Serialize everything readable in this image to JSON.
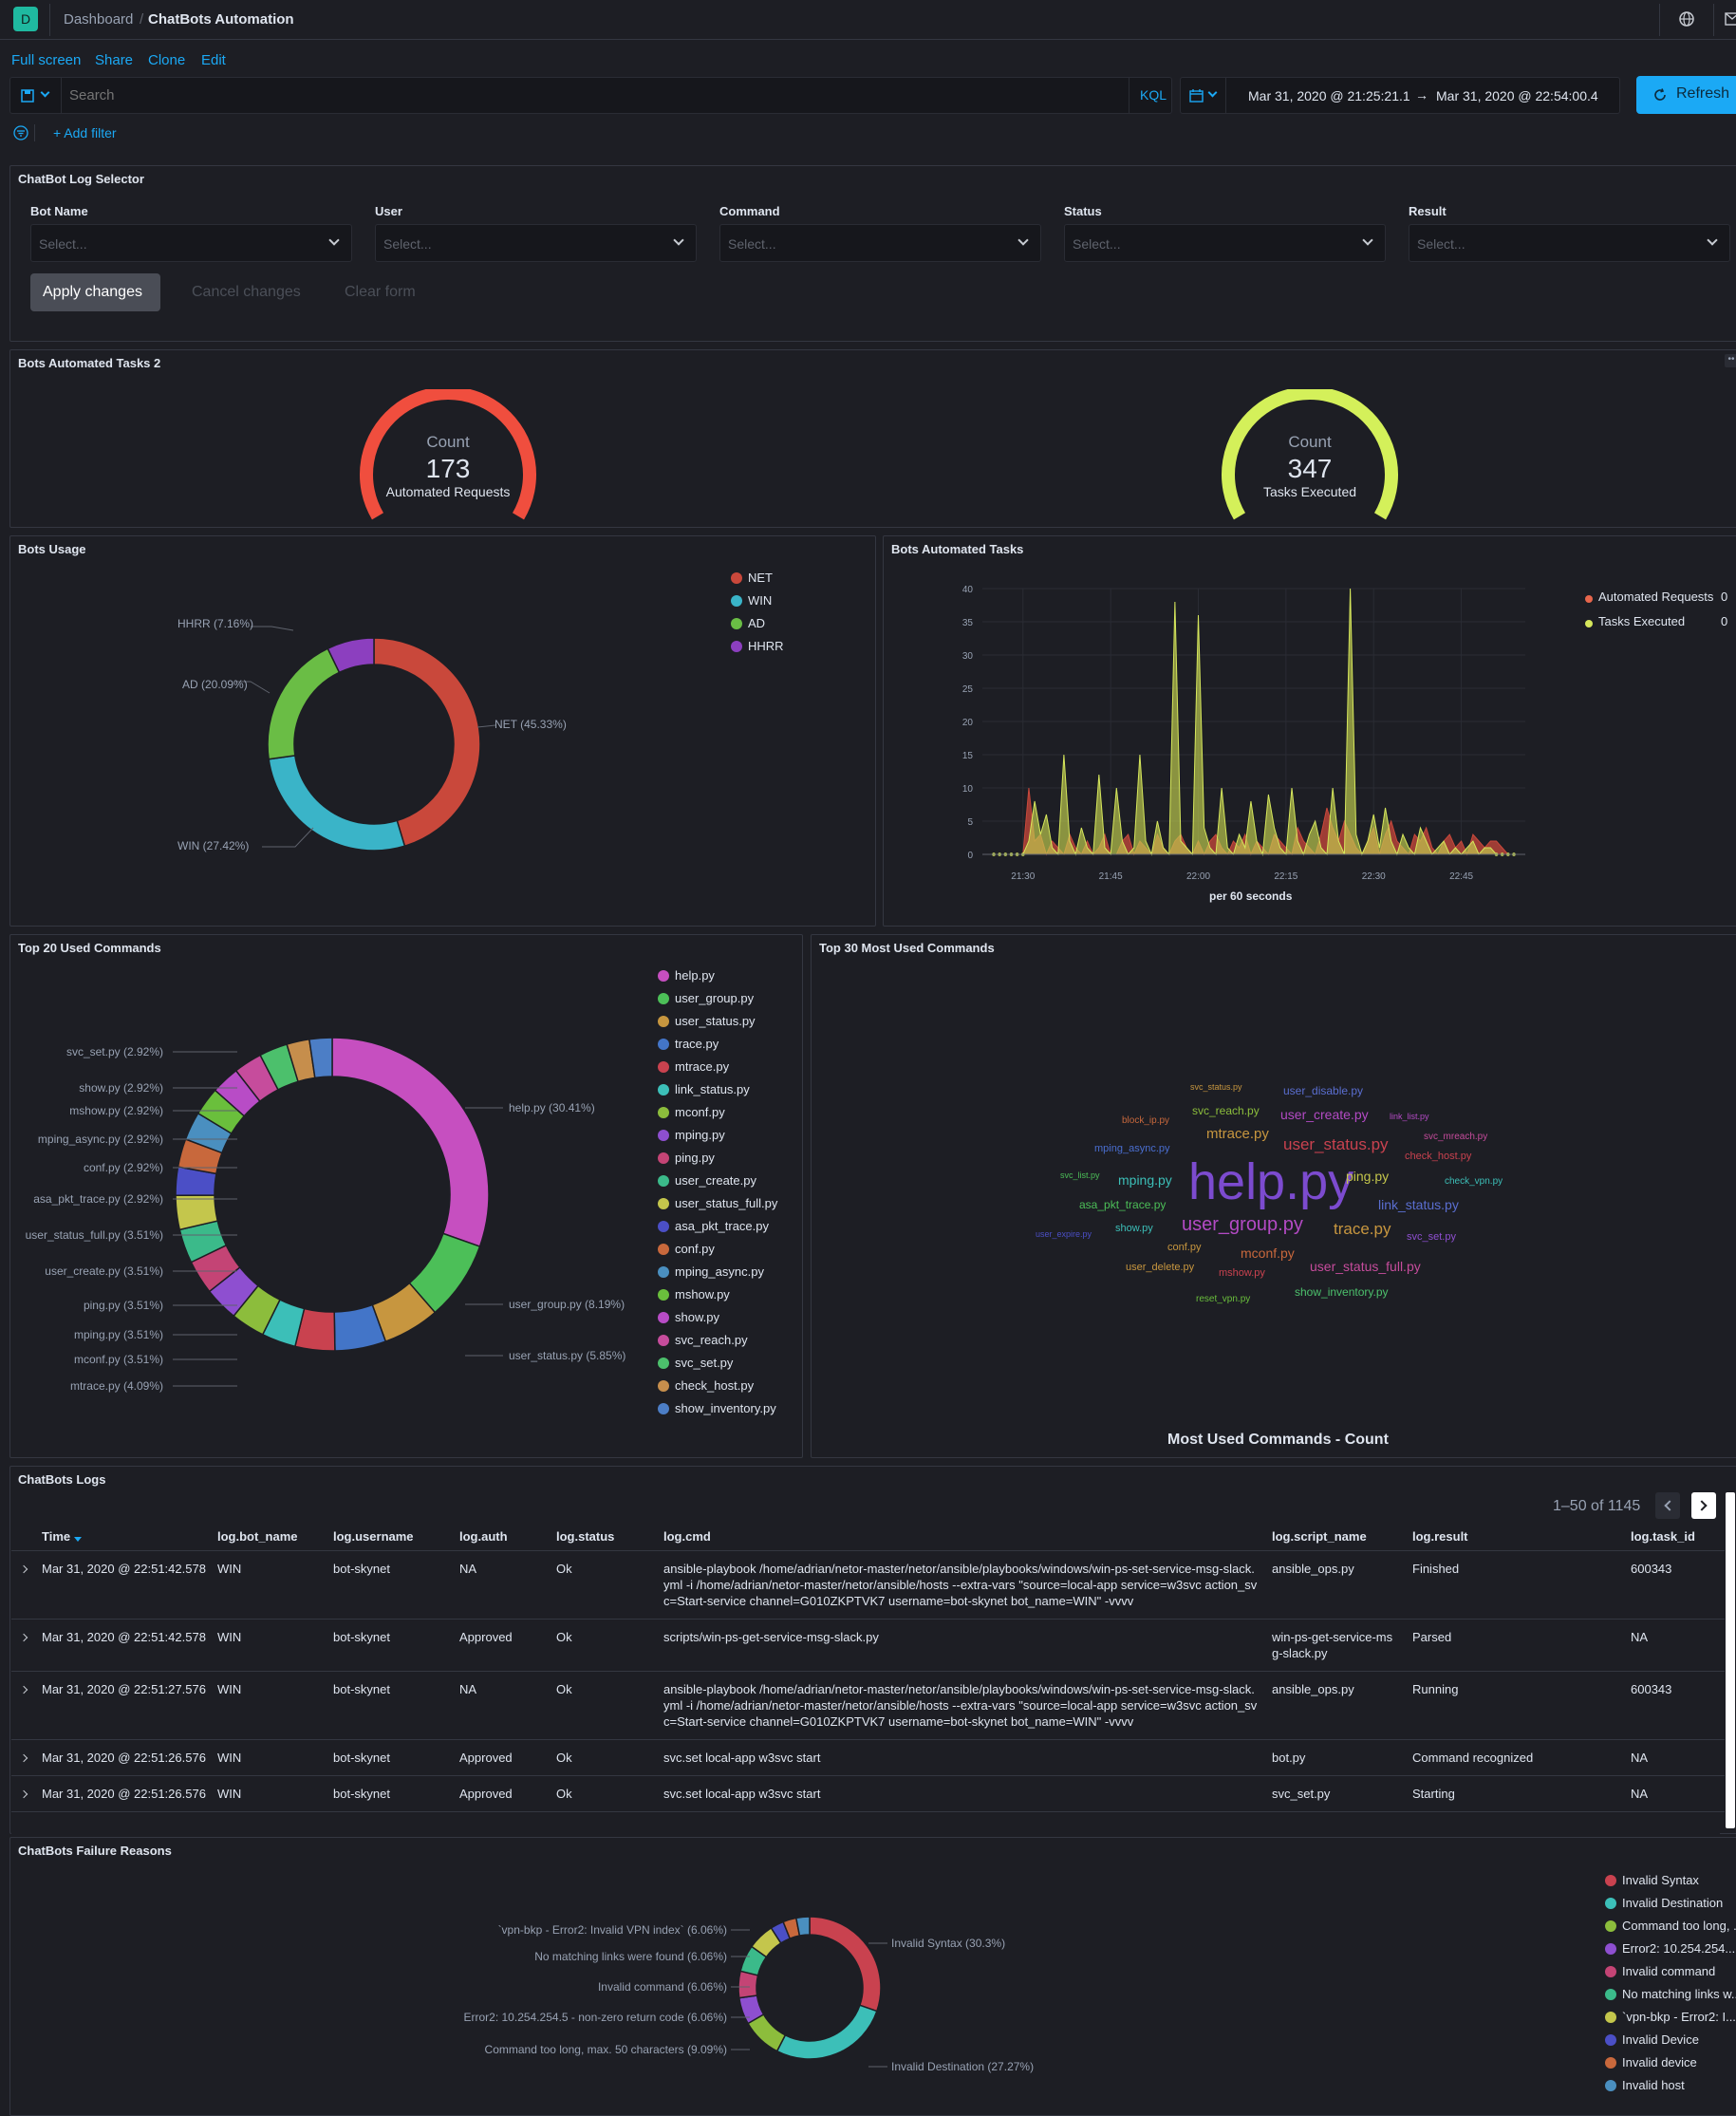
{
  "header": {
    "avatar_letter": "D",
    "crumb_dashboard": "Dashboard",
    "crumb_sep": "/",
    "crumb_current": "ChatBots Automation"
  },
  "actions": {
    "fullscreen": "Full screen",
    "share": "Share",
    "clone": "Clone",
    "edit": "Edit"
  },
  "search": {
    "placeholder": "Search",
    "kql": "KQL",
    "date_from": "Mar 31, 2020 @ 21:25:21.1",
    "arrow": "→",
    "date_to": "Mar 31, 2020 @ 22:54:00.4",
    "refresh": "Refresh",
    "add_filter": "+ Add filter"
  },
  "selector": {
    "title": "ChatBot Log Selector",
    "fields": [
      {
        "label": "Bot Name",
        "placeholder": "Select..."
      },
      {
        "label": "User",
        "placeholder": "Select..."
      },
      {
        "label": "Command",
        "placeholder": "Select..."
      },
      {
        "label": "Status",
        "placeholder": "Select..."
      },
      {
        "label": "Result",
        "placeholder": "Select..."
      }
    ],
    "apply": "Apply changes",
    "cancel": "Cancel changes",
    "clear": "Clear form"
  },
  "gauges": {
    "title": "Bots Automated Tasks 2",
    "items": [
      {
        "label": "Count",
        "value": "173",
        "sub": "Automated Requests",
        "color": "#f04e3e"
      },
      {
        "label": "Count",
        "value": "347",
        "sub": "Tasks Executed",
        "color": "#d4f05a"
      }
    ]
  },
  "bots_usage": {
    "title": "Bots Usage",
    "legend": [
      {
        "name": "NET",
        "color": "#c9483b"
      },
      {
        "name": "WIN",
        "color": "#3ab4c8"
      },
      {
        "name": "AD",
        "color": "#6abd45"
      },
      {
        "name": "HHRR",
        "color": "#8c3fbf"
      }
    ],
    "labels": [
      "NET (45.33%)",
      "WIN (27.42%)",
      "AD (20.09%)",
      "HHRR (7.16%)"
    ],
    "values": [
      45.33,
      27.42,
      20.09,
      7.16
    ]
  },
  "automated_tasks": {
    "title": "Bots Automated Tasks",
    "legend": [
      {
        "name": "Automated Requests",
        "value": "0",
        "color": "#e7664c"
      },
      {
        "name": "Tasks Executed",
        "value": "0",
        "color": "#d6e75c"
      }
    ],
    "xlabel": "per 60 seconds"
  },
  "chart_data": [
    {
      "type": "pie",
      "title": "Bots Usage",
      "categories": [
        "NET",
        "WIN",
        "AD",
        "HHRR"
      ],
      "values": [
        45.33,
        27.42,
        20.09,
        7.16
      ]
    },
    {
      "type": "area",
      "title": "Bots Automated Tasks",
      "xlabel": "per 60 seconds",
      "x_ticks": [
        "21:30",
        "21:45",
        "22:00",
        "22:15",
        "22:30",
        "22:45"
      ],
      "y_ticks": [
        "0",
        "5",
        "10",
        "15",
        "20",
        "25",
        "30",
        "35",
        "40"
      ],
      "ylim": [
        0,
        40
      ],
      "x_minutes": [
        0,
        1,
        2,
        3,
        4,
        5,
        6,
        7,
        8,
        9,
        10,
        11,
        12,
        13,
        14,
        15,
        16,
        17,
        18,
        19,
        20,
        21,
        22,
        23,
        24,
        25,
        26,
        27,
        28,
        29,
        30,
        31,
        32,
        33,
        34,
        35,
        36,
        37,
        38,
        39,
        40,
        41,
        42,
        43,
        44,
        45,
        46,
        47,
        48,
        49,
        50,
        51,
        52,
        53,
        54,
        55,
        56,
        57,
        58,
        59,
        60,
        61,
        62,
        63,
        64,
        65,
        66,
        67,
        68,
        69,
        70,
        71,
        72,
        73,
        74,
        75,
        76,
        77,
        78,
        79,
        80,
        81,
        82,
        83,
        84,
        85,
        86,
        87,
        88,
        89
      ],
      "series": [
        {
          "name": "Automated Requests",
          "values": [
            0,
            0,
            0,
            0,
            0,
            0,
            10,
            2,
            3,
            0,
            2,
            1,
            0,
            3,
            1,
            0,
            2,
            0,
            1,
            3,
            0,
            0,
            2,
            3,
            0,
            2,
            1,
            0,
            3,
            1,
            0,
            2,
            3,
            1,
            0,
            2,
            0,
            2,
            3,
            1,
            0,
            2,
            1,
            3,
            0,
            2,
            1,
            0,
            3,
            2,
            1,
            0,
            4,
            2,
            1,
            0,
            3,
            7,
            4,
            2,
            5,
            3,
            1,
            0,
            2,
            4,
            0,
            3,
            5,
            2,
            1,
            0,
            3,
            2,
            4,
            1,
            0,
            2,
            3,
            1,
            2,
            0,
            3,
            2,
            1,
            2,
            2,
            1,
            0,
            0
          ]
        },
        {
          "name": "Tasks Executed",
          "values": [
            0,
            0,
            0,
            0,
            0,
            0,
            2,
            8,
            3,
            6,
            1,
            0,
            15,
            2,
            0,
            4,
            1,
            0,
            12,
            1,
            0,
            10,
            2,
            0,
            1,
            15,
            2,
            0,
            5,
            1,
            0,
            38,
            2,
            1,
            0,
            36,
            4,
            1,
            0,
            10,
            1,
            0,
            3,
            1,
            8,
            2,
            0,
            9,
            4,
            1,
            0,
            10,
            2,
            0,
            3,
            5,
            1,
            0,
            10,
            2,
            0,
            40,
            3,
            0,
            2,
            6,
            1,
            7,
            2,
            0,
            3,
            1,
            0,
            4,
            2,
            0,
            1,
            2,
            0,
            1,
            0,
            1,
            2,
            0,
            1,
            1,
            0,
            0,
            0,
            0
          ]
        }
      ]
    },
    {
      "type": "pie",
      "title": "Top 20 Used Commands",
      "categories": [
        "help.py",
        "user_group.py",
        "user_status.py",
        "trace.py",
        "mtrace.py",
        "link_status.py",
        "mconf.py",
        "mping.py",
        "ping.py",
        "user_create.py",
        "user_status_full.py",
        "asa_pkt_trace.py",
        "conf.py",
        "mping_async.py",
        "mshow.py",
        "show.py",
        "svc_reach.py",
        "svc_set.py",
        "check_host.py",
        "show_inventory.py"
      ],
      "values": [
        30.41,
        8.19,
        5.85,
        5.26,
        4.09,
        3.51,
        3.51,
        3.51,
        3.51,
        3.51,
        3.51,
        2.92,
        2.92,
        2.92,
        2.92,
        2.92,
        2.92,
        2.92,
        2.34,
        2.34
      ]
    },
    {
      "type": "pie",
      "title": "ChatBots Failure Reasons",
      "categories": [
        "Invalid Syntax",
        "Invalid Destination",
        "Command too long, max. 50 characters",
        "Error2: 10.254.254.5 - non-zero return code",
        "Invalid command",
        "No matching links were found",
        "`vpn-bkp - Error2: Invalid VPN index`",
        "Invalid Device",
        "Invalid device",
        "Invalid host"
      ],
      "values": [
        30.3,
        27.27,
        9.09,
        6.06,
        6.06,
        6.06,
        6.06,
        3.03,
        3.03,
        3.03
      ]
    }
  ],
  "top20": {
    "title": "Top 20 Used Commands",
    "legend": [
      {
        "name": "help.py",
        "color": "#c64fc0"
      },
      {
        "name": "user_group.py",
        "color": "#4cbf58"
      },
      {
        "name": "user_status.py",
        "color": "#c7963f"
      },
      {
        "name": "trace.py",
        "color": "#4375c8"
      },
      {
        "name": "mtrace.py",
        "color": "#c9424f"
      },
      {
        "name": "link_status.py",
        "color": "#3cbfb8"
      },
      {
        "name": "mconf.py",
        "color": "#8cbd3c"
      },
      {
        "name": "mping.py",
        "color": "#8e4fd0"
      },
      {
        "name": "ping.py",
        "color": "#c44475"
      },
      {
        "name": "user_create.py",
        "color": "#3bba8a"
      },
      {
        "name": "user_status_full.py",
        "color": "#c4c64c"
      },
      {
        "name": "asa_pkt_trace.py",
        "color": "#4b4fc6"
      },
      {
        "name": "conf.py",
        "color": "#c8683c"
      },
      {
        "name": "mping_async.py",
        "color": "#4a8fc0"
      },
      {
        "name": "mshow.py",
        "color": "#6abf3c"
      },
      {
        "name": "show.py",
        "color": "#b84cc6"
      },
      {
        "name": "svc_reach.py",
        "color": "#c64c9c"
      },
      {
        "name": "svc_set.py",
        "color": "#4cc06c"
      },
      {
        "name": "check_host.py",
        "color": "#c68e4c"
      },
      {
        "name": "show_inventory.py",
        "color": "#4c7ec6"
      }
    ],
    "labels_left": [
      "svc_set.py (2.92%)",
      "show.py (2.92%)",
      "mshow.py (2.92%)",
      "mping_async.py (2.92%)",
      "conf.py (2.92%)",
      "asa_pkt_trace.py (2.92%)",
      "user_status_full.py (3.51%)",
      "user_create.py (3.51%)",
      "ping.py (3.51%)",
      "mping.py (3.51%)",
      "mconf.py (3.51%)",
      "mtrace.py (4.09%)"
    ],
    "labels_right": [
      "help.py (30.41%)",
      "user_group.py (8.19%)",
      "user_status.py (5.85%)"
    ]
  },
  "wordcloud": {
    "title": "Top 30 Most Used Commands",
    "footer": "Most Used Commands - Count",
    "words": [
      {
        "text": "help.py",
        "color": "#7c4bcf"
      },
      {
        "text": "user_group.py",
        "color": "#b34ac4"
      },
      {
        "text": "user_status.py",
        "color": "#c9424f"
      },
      {
        "text": "trace.py",
        "color": "#c7963f"
      },
      {
        "text": "mtrace.py",
        "color": "#c7963f"
      },
      {
        "text": "user_create.py",
        "color": "#b34ac4"
      },
      {
        "text": "link_status.py",
        "color": "#5a6ed0"
      },
      {
        "text": "mping.py",
        "color": "#3cbfb8"
      },
      {
        "text": "user_status_full.py",
        "color": "#c64c9c"
      },
      {
        "text": "ping.py",
        "color": "#c4c64c"
      },
      {
        "text": "mconf.py",
        "color": "#c8683c"
      },
      {
        "text": "asa_pkt_trace.py",
        "color": "#4cbf58"
      },
      {
        "text": "svc_reach.py",
        "color": "#8cbd3c"
      },
      {
        "text": "user_disable.py",
        "color": "#5a6ed0"
      },
      {
        "text": "check_host.py",
        "color": "#c9424f"
      },
      {
        "text": "show_inventory.py",
        "color": "#4cc06c"
      },
      {
        "text": "user_delete.py",
        "color": "#c7963f"
      },
      {
        "text": "mshow.py",
        "color": "#c9424f"
      },
      {
        "text": "show.py",
        "color": "#3cbfb8"
      },
      {
        "text": "mping_async.py",
        "color": "#4a6ed0"
      },
      {
        "text": "block_ip.py",
        "color": "#c8683c"
      },
      {
        "text": "svc_status.py",
        "color": "#c7963f"
      },
      {
        "text": "link_list.py",
        "color": "#b34ac4"
      },
      {
        "text": "svc_mreach.py",
        "color": "#c64c9c"
      },
      {
        "text": "check_vpn.py",
        "color": "#3cbfb8"
      },
      {
        "text": "svc_set.py",
        "color": "#8e4fd0"
      },
      {
        "text": "svc_list.py",
        "color": "#4cbf58"
      },
      {
        "text": "conf.py",
        "color": "#c7963f"
      },
      {
        "text": "user_expire.py",
        "color": "#4b4fc6"
      },
      {
        "text": "reset_vpn.py",
        "color": "#6abf3c"
      }
    ]
  },
  "logs": {
    "title": "ChatBots Logs",
    "pagination": "1–50 of 1145",
    "columns": [
      "Time",
      "log.bot_name",
      "log.username",
      "log.auth",
      "log.status",
      "log.cmd",
      "log.script_name",
      "log.result",
      "log.task_id"
    ],
    "rows": [
      {
        "time": "Mar 31, 2020 @ 22:51:42.578",
        "bot": "WIN",
        "user": "bot-skynet",
        "auth": "NA",
        "status": "Ok",
        "cmd1": "ansible-playbook /home/adrian/netor-master/netor/ansible/playbooks/windows/win-ps-set-service-msg-slack.",
        "cmd2": "yml -i /home/adrian/netor-master/netor/ansible/hosts --extra-vars \"source=local-app service=w3svc action_sv",
        "cmd3": "c=Start-service channel=G010ZKPTVK7 username=bot-skynet bot_name=WIN\" -vvvv",
        "script1": "ansible_ops.py",
        "script2": "",
        "result": "Finished",
        "task": "600343"
      },
      {
        "time": "Mar 31, 2020 @ 22:51:42.578",
        "bot": "WIN",
        "user": "bot-skynet",
        "auth": "Approved",
        "status": "Ok",
        "cmd1": "scripts/win-ps-get-service-msg-slack.py",
        "cmd2": "",
        "cmd3": "",
        "script1": "win-ps-get-service-ms",
        "script2": "g-slack.py",
        "result": "Parsed",
        "task": "NA"
      },
      {
        "time": "Mar 31, 2020 @ 22:51:27.576",
        "bot": "WIN",
        "user": "bot-skynet",
        "auth": "NA",
        "status": "Ok",
        "cmd1": "ansible-playbook /home/adrian/netor-master/netor/ansible/playbooks/windows/win-ps-set-service-msg-slack.",
        "cmd2": "yml -i /home/adrian/netor-master/netor/ansible/hosts --extra-vars \"source=local-app service=w3svc action_sv",
        "cmd3": "c=Start-service channel=G010ZKPTVK7 username=bot-skynet bot_name=WIN\" -vvvv",
        "script1": "ansible_ops.py",
        "script2": "",
        "result": "Running",
        "task": "600343"
      },
      {
        "time": "Mar 31, 2020 @ 22:51:26.576",
        "bot": "WIN",
        "user": "bot-skynet",
        "auth": "Approved",
        "status": "Ok",
        "cmd1": "svc.set local-app w3svc start",
        "cmd2": "",
        "cmd3": "",
        "script1": "bot.py",
        "script2": "",
        "result": "Command recognized",
        "task": "NA"
      },
      {
        "time": "Mar 31, 2020 @ 22:51:26.576",
        "bot": "WIN",
        "user": "bot-skynet",
        "auth": "Approved",
        "status": "Ok",
        "cmd1": "svc.set local-app w3svc start",
        "cmd2": "",
        "cmd3": "",
        "script1": "svc_set.py",
        "script2": "",
        "result": "Starting",
        "task": "NA"
      }
    ]
  },
  "failures": {
    "title": "ChatBots Failure Reasons",
    "legend": [
      {
        "name": "Invalid Syntax",
        "color": "#c9424f"
      },
      {
        "name": "Invalid Destination",
        "color": "#3cbfb8"
      },
      {
        "name": "Command too long, ...",
        "color": "#8cbd3c"
      },
      {
        "name": "Error2: 10.254.254....",
        "color": "#8e4fd0"
      },
      {
        "name": "Invalid command",
        "color": "#c44475"
      },
      {
        "name": "No matching links w...",
        "color": "#3bba8a"
      },
      {
        "name": "`vpn-bkp - Error2: I...",
        "color": "#c4c64c"
      },
      {
        "name": "Invalid Device",
        "color": "#4b4fc6"
      },
      {
        "name": "Invalid device",
        "color": "#c8683c"
      },
      {
        "name": "Invalid host",
        "color": "#4a8fc0"
      }
    ],
    "labels_left": [
      "`vpn-bkp - Error2: Invalid VPN index` (6.06%)",
      "No matching links were found (6.06%)",
      "Invalid command (6.06%)",
      "Error2: 10.254.254.5 - non-zero return code (6.06%)",
      "Command too long, max. 50 characters (9.09%)"
    ],
    "labels_right": [
      "Invalid Syntax (30.3%)",
      "Invalid Destination (27.27%)"
    ]
  }
}
